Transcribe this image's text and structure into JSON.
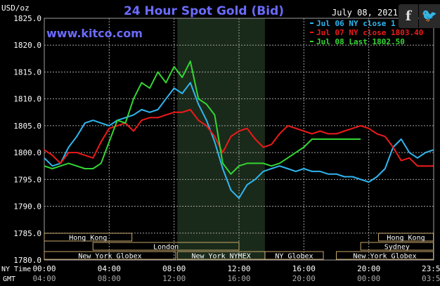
{
  "chart_data": {
    "type": "line",
    "title": "24 Hour Spot Gold (Bid)",
    "date": "July 08, 2021",
    "watermark": "www.kitco.com",
    "ylabel": "USD/oz",
    "ylim": [
      1780,
      1825
    ],
    "y_ticks": [
      "1825.0",
      "1820.0",
      "1815.0",
      "1810.0",
      "1805.0",
      "1800.0",
      "1795.0",
      "1790.0",
      "1785.0",
      "1780.0"
    ],
    "x_range_hours": [
      0,
      24
    ],
    "x_ticks_ny": [
      "00:00",
      "04:00",
      "08:00",
      "12:00",
      "16:00",
      "20:00",
      "23:59"
    ],
    "x_ticks_gmt": [
      "04:00",
      "08:00",
      "12:00",
      "16:00",
      "20:00",
      "00:00",
      "03:59"
    ],
    "x_axis_labels": {
      "ny": "NY Time",
      "gmt": "GMT"
    },
    "grid": true,
    "legend_position": "top-right",
    "shaded_session_hours": [
      8.2,
      13.6
    ],
    "series": [
      {
        "name": "Jul 06 NY close 1",
        "color": "#2fb6f0",
        "x": [
          0,
          0.5,
          1,
          1.5,
          2,
          2.5,
          3,
          3.5,
          4,
          4.5,
          5,
          5.5,
          6,
          6.5,
          7,
          7.5,
          8,
          8.5,
          9,
          9.5,
          10,
          10.5,
          11,
          11.5,
          12,
          12.5,
          13,
          13.5,
          14,
          14.5,
          15,
          15.5,
          16,
          16.5,
          17,
          17.5,
          18,
          18.5,
          19,
          19.5,
          20,
          20.5,
          21,
          21.5,
          22,
          22.5,
          23,
          23.5,
          23.98
        ],
        "values": [
          1799,
          1797.5,
          1798,
          1801,
          1803,
          1805.5,
          1806,
          1805.5,
          1805,
          1806,
          1806.5,
          1807,
          1808,
          1807.5,
          1808,
          1810,
          1812,
          1811,
          1813,
          1809,
          1806,
          1802,
          1797,
          1793,
          1791.5,
          1794,
          1795,
          1796.5,
          1797,
          1797.5,
          1797,
          1796.5,
          1797,
          1796.5,
          1796.5,
          1796,
          1796,
          1795.5,
          1795.5,
          1795,
          1794.5,
          1795.5,
          1797,
          1801,
          1802.5,
          1800,
          1799,
          1800,
          1800.5
        ]
      },
      {
        "name": "Jul 07 NY close 1803.40",
        "color": "#ee1a1a",
        "x": [
          0,
          0.5,
          1,
          1.5,
          2,
          2.5,
          3,
          3.5,
          4,
          4.5,
          5,
          5.5,
          6,
          6.5,
          7,
          7.5,
          8,
          8.5,
          9,
          9.5,
          10,
          10.5,
          11,
          11.5,
          12,
          12.5,
          13,
          13.5,
          14,
          14.5,
          15,
          15.5,
          16,
          16.5,
          17,
          17.5,
          18,
          18.5,
          19,
          19.5,
          20,
          20.5,
          21,
          21.5,
          22,
          22.5,
          23,
          23.5,
          23.98
        ],
        "values": [
          1800.5,
          1799.5,
          1798,
          1800,
          1800,
          1799.5,
          1799,
          1802,
          1804.5,
          1805,
          1805.5,
          1804,
          1806,
          1806.5,
          1806.5,
          1807,
          1807.5,
          1807.5,
          1808,
          1806,
          1805,
          1803,
          1800,
          1803,
          1804,
          1804.5,
          1802.5,
          1801,
          1801.5,
          1803.5,
          1805,
          1804.5,
          1804,
          1803.5,
          1804,
          1803.5,
          1803.5,
          1804,
          1804.5,
          1805,
          1804.5,
          1803.5,
          1803,
          1801,
          1798.5,
          1799,
          1797.5,
          1797.5,
          1797.5
        ]
      },
      {
        "name": "Jul 08 Last 1802.50",
        "color": "#33d633",
        "x": [
          0,
          0.5,
          1,
          1.5,
          2,
          2.5,
          3,
          3.5,
          4,
          4.5,
          5,
          5.5,
          6,
          6.5,
          7,
          7.5,
          8,
          8.5,
          9,
          9.5,
          10,
          10.5,
          11,
          11.5,
          12,
          12.5,
          13,
          13.5,
          14,
          14.5,
          15,
          15.5,
          16,
          16.5,
          17,
          17.5,
          18,
          18.5,
          19,
          19.5
        ],
        "values": [
          1797.5,
          1797,
          1797.5,
          1798,
          1797.5,
          1797,
          1797,
          1798,
          1802,
          1806,
          1805.5,
          1810,
          1813,
          1812,
          1815,
          1813,
          1816,
          1814,
          1817,
          1810,
          1809,
          1807,
          1798,
          1796,
          1797.5,
          1798,
          1798,
          1798,
          1797.5,
          1798,
          1799,
          1800,
          1801,
          1802.5,
          1802.5,
          1802.5,
          1802.5,
          1802.5,
          1802.5,
          1802.5
        ]
      }
    ],
    "sessions": [
      {
        "label": "Hong Kong",
        "row": 0,
        "start": 0.0,
        "end": 5.4
      },
      {
        "label": "London",
        "row": 1,
        "start": 3.0,
        "end": 12.0
      },
      {
        "label": "New York Globex",
        "row": 2,
        "start": 0.0,
        "end": 8.1
      },
      {
        "label": "New York NYMEX",
        "row": 2,
        "start": 8.2,
        "end": 13.6
      },
      {
        "label": "NY Globex",
        "row": 2,
        "start": 13.6,
        "end": 17.2
      },
      {
        "label": "Hong Kong",
        "row": 0,
        "start": 20.6,
        "end": 23.98
      },
      {
        "label": "Sydney",
        "row": 1,
        "start": 19.5,
        "end": 23.98
      },
      {
        "label": "New York Globex",
        "row": 2,
        "start": 18.0,
        "end": 23.98
      }
    ]
  },
  "share": {
    "facebook_label": "f",
    "twitter_label": "🐦"
  },
  "colors": {
    "background": "#000000",
    "grid": "#a0a0a0",
    "title": "#6b6bff",
    "watermark": "#6b6bff",
    "axis_text": "#ffffff",
    "session_text": "#ffffff",
    "session_box": "#c8a86c",
    "shade": "#1a2a1a"
  }
}
